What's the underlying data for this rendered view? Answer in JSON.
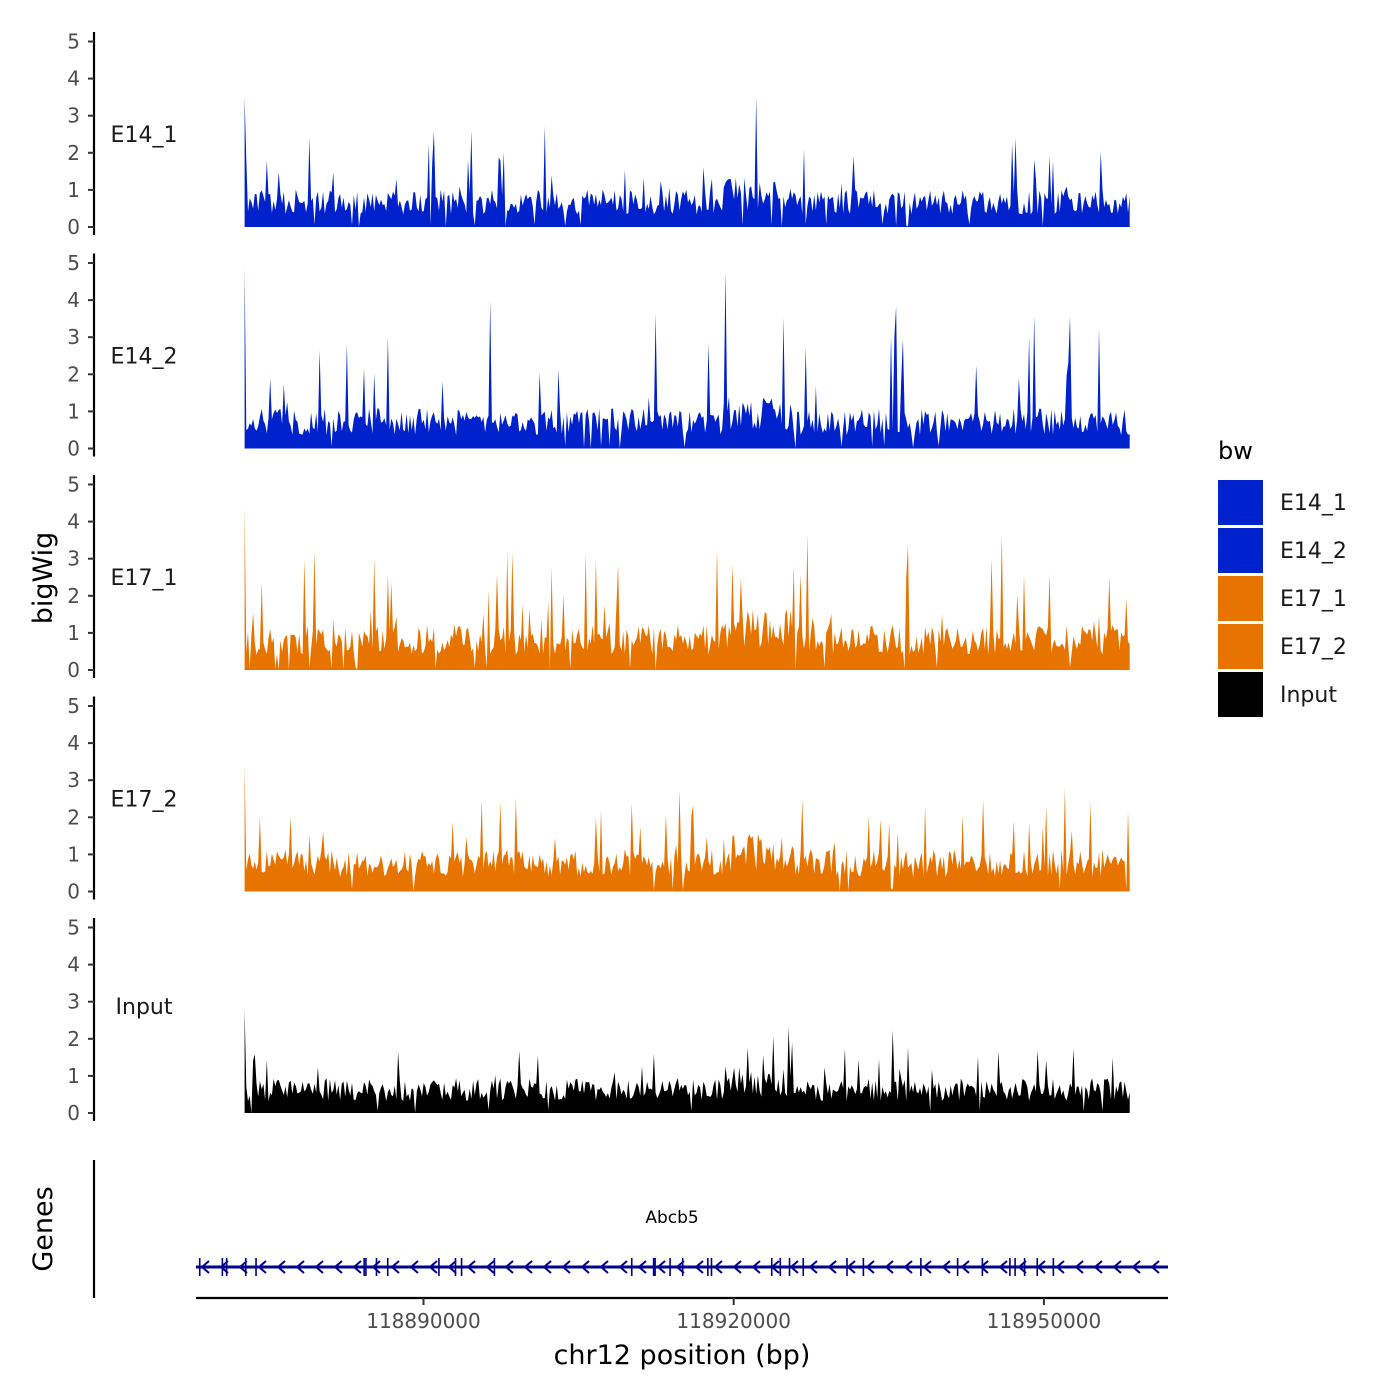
{
  "chart_data": {
    "type": "area",
    "ylabel": "bigWig",
    "xlabel": "chr12 position (bp)",
    "ylim": [
      0,
      5
    ],
    "yticks": [
      0,
      1,
      2,
      3,
      4,
      5
    ],
    "xlim": [
      118868000,
      118962000
    ],
    "region": [
      118872700,
      118958300
    ],
    "xticks": [
      "118890000",
      "118920000",
      "118950000"
    ],
    "xtick_values": [
      118890000,
      118920000,
      118950000
    ],
    "tracks": [
      {
        "name": "E14_1",
        "color": "#0022cc",
        "max": 3.5,
        "mean": 0.75
      },
      {
        "name": "E14_2",
        "color": "#0022cc",
        "max": 4.9,
        "mean": 0.8
      },
      {
        "name": "E17_1",
        "color": "#e87400",
        "max": 4.4,
        "mean": 0.9
      },
      {
        "name": "E17_2",
        "color": "#e87400",
        "max": 3.4,
        "mean": 0.85
      },
      {
        "name": "Input",
        "color": "#000000",
        "max": 2.8,
        "mean": 0.7
      }
    ],
    "legend": {
      "title": "bw",
      "position": "right",
      "items": [
        {
          "label": "E14_1",
          "color": "#0022cc"
        },
        {
          "label": "E14_2",
          "color": "#0022cc"
        },
        {
          "label": "E17_1",
          "color": "#e87400"
        },
        {
          "label": "E17_2",
          "color": "#e87400"
        },
        {
          "label": "Input",
          "color": "#000000"
        }
      ]
    },
    "genes_track": {
      "title": "Genes",
      "gene": "Abcb5",
      "strand": "-",
      "color": "#00008b",
      "start": 118868000,
      "end": 118962000
    }
  }
}
